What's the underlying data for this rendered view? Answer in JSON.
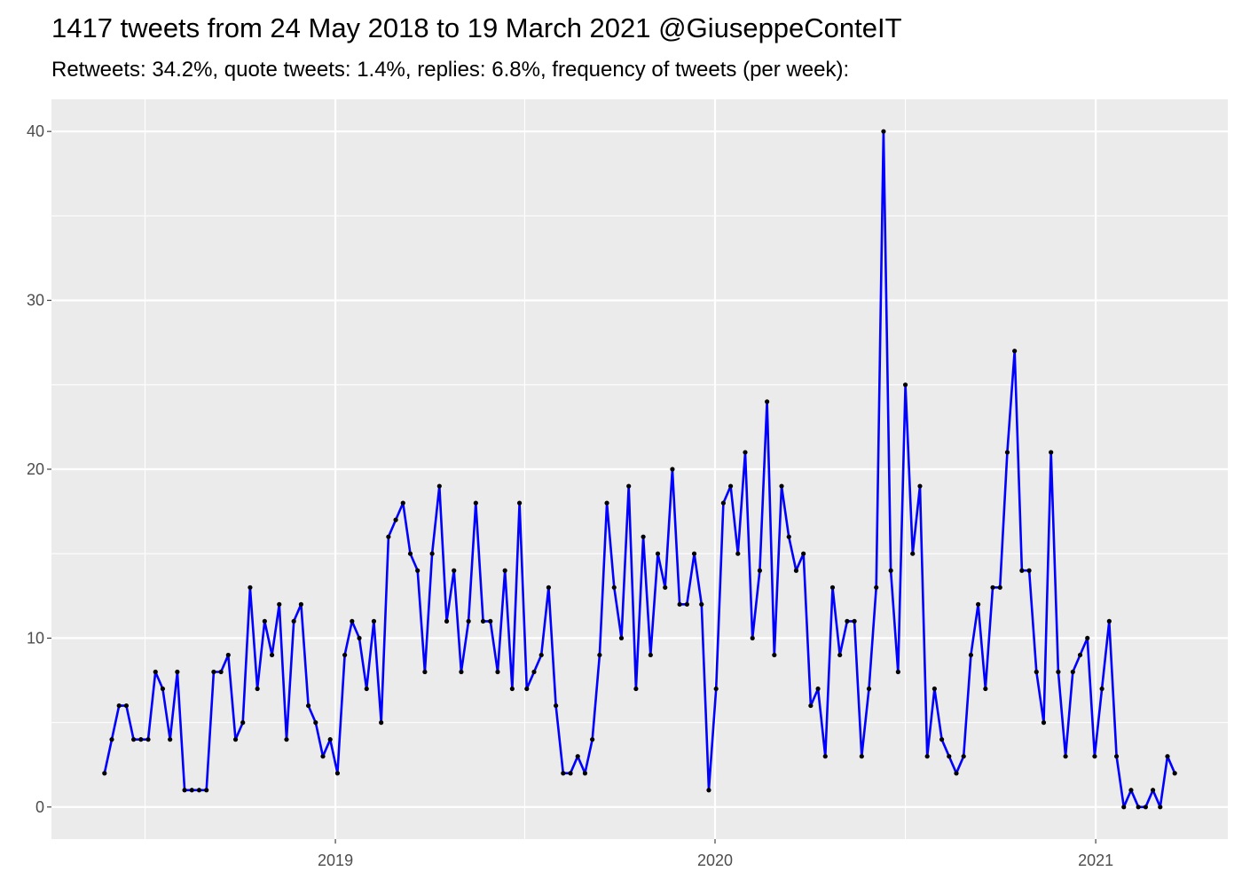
{
  "chart_data": {
    "type": "line",
    "title": "1417 tweets from 24 May 2018 to 19 March 2021 @GiuseppeConteIT",
    "subtitle": "Retweets: 34.2%, quote tweets: 1.4%, replies: 6.8%, frequency of tweets (per week):",
    "xlabel": "",
    "ylabel": "",
    "x_start": "2018-05-24",
    "x_frequency": "weekly",
    "xlim": [
      "2018-04-03",
      "2021-05-08"
    ],
    "ylim": [
      -1.9,
      41.9
    ],
    "x_ticks": [
      {
        "label": "2019",
        "date": "2019-01-01"
      },
      {
        "label": "2020",
        "date": "2020-01-01"
      },
      {
        "label": "2021",
        "date": "2021-01-01"
      }
    ],
    "y_ticks": [
      0,
      10,
      20,
      30,
      40
    ],
    "grid": true,
    "legend": "none",
    "colors": {
      "line": "#0000ff",
      "points": "#000000",
      "panel": "#ebebeb",
      "grid": "#ffffff"
    },
    "values": [
      2,
      4,
      6,
      6,
      4,
      4,
      4,
      8,
      7,
      4,
      8,
      1,
      1,
      1,
      1,
      8,
      8,
      9,
      4,
      5,
      13,
      7,
      11,
      9,
      12,
      4,
      11,
      12,
      6,
      5,
      3,
      4,
      2,
      9,
      11,
      10,
      7,
      11,
      5,
      16,
      17,
      18,
      15,
      14,
      8,
      15,
      19,
      11,
      14,
      8,
      11,
      18,
      11,
      11,
      8,
      14,
      7,
      18,
      7,
      8,
      9,
      13,
      6,
      2,
      2,
      3,
      2,
      4,
      9,
      18,
      13,
      10,
      19,
      7,
      16,
      9,
      15,
      13,
      20,
      12,
      12,
      15,
      12,
      1,
      7,
      18,
      19,
      15,
      21,
      10,
      14,
      24,
      9,
      19,
      16,
      14,
      15,
      6,
      7,
      3,
      13,
      9,
      11,
      11,
      3,
      7,
      13,
      40,
      14,
      8,
      25,
      15,
      19,
      3,
      7,
      4,
      3,
      2,
      3,
      9,
      12,
      7,
      13,
      13,
      21,
      27,
      14,
      14,
      8,
      5,
      21,
      8,
      3,
      8,
      9,
      10,
      3,
      7,
      11,
      3,
      0,
      1,
      0,
      0,
      1,
      0,
      3,
      2
    ]
  }
}
